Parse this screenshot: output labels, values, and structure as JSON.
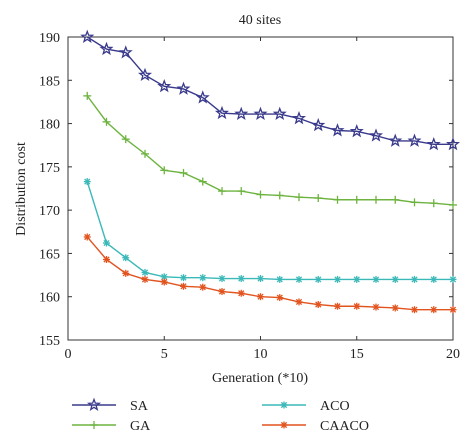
{
  "chart_data": {
    "type": "line",
    "title": "40 sites",
    "xlabel": "Generation (*10)",
    "ylabel": "Distribution cost",
    "xlim": [
      0,
      20
    ],
    "ylim": [
      155,
      190
    ],
    "xticks": [
      0,
      5,
      10,
      15,
      20
    ],
    "yticks": [
      155,
      160,
      165,
      170,
      175,
      180,
      185,
      190
    ],
    "grid": false,
    "legend_position": "bottom",
    "x": [
      1,
      2,
      3,
      4,
      5,
      6,
      7,
      8,
      9,
      10,
      11,
      12,
      13,
      14,
      15,
      16,
      17,
      18,
      19,
      20
    ],
    "series": [
      {
        "name": "SA",
        "color": "#3a3a8c",
        "marker": "star",
        "values": [
          190.0,
          188.6,
          188.2,
          185.6,
          184.3,
          184.0,
          183.0,
          181.2,
          181.1,
          181.1,
          181.1,
          180.6,
          179.8,
          179.2,
          179.1,
          178.6,
          178.0,
          178.0,
          177.6,
          177.6
        ]
      },
      {
        "name": "GA",
        "color": "#6db33f",
        "marker": "plus",
        "values": [
          183.2,
          180.2,
          178.2,
          176.5,
          174.6,
          174.3,
          173.3,
          172.2,
          172.2,
          171.8,
          171.7,
          171.5,
          171.4,
          171.2,
          171.2,
          171.2,
          171.2,
          170.9,
          170.8,
          170.6
        ]
      },
      {
        "name": "ACO",
        "color": "#3bb8b8",
        "marker": "asterisk",
        "values": [
          173.3,
          166.2,
          164.5,
          162.8,
          162.3,
          162.2,
          162.2,
          162.1,
          162.1,
          162.1,
          162.0,
          162.0,
          162.0,
          162.0,
          162.0,
          162.0,
          162.0,
          162.0,
          162.0,
          162.0
        ]
      },
      {
        "name": "CAACO",
        "color": "#e2541f",
        "marker": "asterisk",
        "values": [
          166.9,
          164.3,
          162.7,
          162.0,
          161.7,
          161.2,
          161.1,
          160.6,
          160.4,
          160.0,
          159.9,
          159.4,
          159.1,
          158.9,
          158.9,
          158.8,
          158.7,
          158.5,
          158.5,
          158.5
        ]
      }
    ]
  }
}
